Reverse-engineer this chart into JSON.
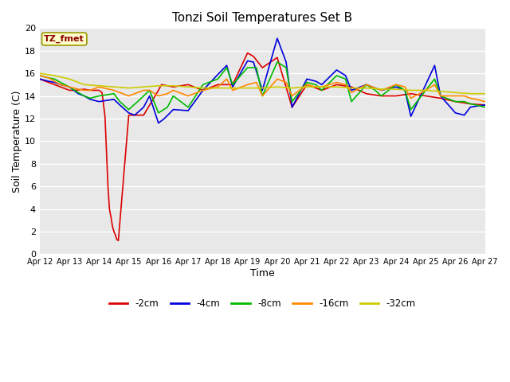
{
  "title": "Tonzi Soil Temperatures Set B",
  "xlabel": "Time",
  "ylabel": "Soil Temperature (C)",
  "ylim": [
    0,
    20
  ],
  "xlim_days": 15,
  "x_tick_labels": [
    "Apr 12",
    "Apr 13",
    "Apr 14",
    "Apr 15",
    "Apr 16",
    "Apr 17",
    "Apr 18",
    "Apr 19",
    "Apr 20",
    "Apr 21",
    "Apr 22",
    "Apr 23",
    "Apr 24",
    "Apr 25",
    "Apr 26",
    "Apr 27"
  ],
  "annotation_label": "TZ_fmet",
  "fig_bg": "#ffffff",
  "plot_bg": "#e8e8e8",
  "grid_color": "#ffffff",
  "series_colors": {
    "neg2cm": "#dd0000",
    "neg4cm": "#0000dd",
    "neg8cm": "#00bb00",
    "neg16cm": "#ff8800",
    "neg32cm": "#cccc00"
  },
  "series_labels": {
    "neg2cm": "-2cm",
    "neg4cm": "-4cm",
    "neg8cm": "-8cm",
    "neg16cm": "-16cm",
    "neg32cm": "-32cm"
  },
  "lw": 1.2,
  "neg2cm_x": [
    0,
    0.3,
    0.5,
    0.7,
    1.0,
    1.2,
    1.5,
    1.7,
    2.0,
    2.1,
    2.2,
    2.3,
    2.35,
    2.4,
    2.45,
    2.5,
    2.55,
    2.6,
    2.65,
    3.0,
    3.5,
    4.0,
    4.1,
    4.5,
    5.0,
    5.5,
    6.0,
    6.5,
    7.0,
    7.2,
    7.5,
    8.0,
    8.5,
    9.0,
    9.5,
    10.0,
    10.5,
    11.0,
    11.5,
    12.0,
    12.5,
    13.0,
    13.5,
    14.0,
    14.5,
    15.0
  ],
  "neg2cm_y": [
    15.5,
    15.2,
    15.0,
    14.8,
    14.5,
    14.5,
    14.6,
    14.5,
    14.5,
    14.3,
    12.2,
    6.0,
    4.0,
    3.3,
    2.5,
    2.0,
    1.7,
    1.3,
    1.2,
    12.3,
    12.3,
    14.5,
    15.0,
    14.8,
    15.0,
    14.5,
    15.0,
    15.0,
    17.8,
    17.5,
    16.5,
    17.4,
    13.0,
    15.0,
    14.5,
    15.0,
    14.8,
    14.2,
    14.0,
    14.0,
    14.2,
    14.0,
    13.8,
    13.5,
    13.3,
    13.2
  ],
  "neg4cm_x": [
    0,
    0.3,
    0.5,
    0.7,
    1.0,
    1.3,
    1.5,
    1.7,
    2.0,
    2.5,
    2.7,
    3.0,
    3.2,
    3.5,
    3.7,
    4.0,
    4.2,
    4.5,
    5.0,
    5.5,
    6.0,
    6.3,
    6.5,
    7.0,
    7.2,
    7.5,
    8.0,
    8.3,
    8.5,
    9.0,
    9.3,
    9.5,
    10.0,
    10.3,
    10.5,
    11.0,
    11.3,
    11.5,
    12.0,
    12.3,
    12.5,
    13.0,
    13.3,
    13.5,
    14.0,
    14.3,
    14.5,
    14.7,
    15.0
  ],
  "neg4cm_y": [
    15.5,
    15.3,
    15.2,
    15.0,
    14.8,
    14.2,
    14.0,
    13.7,
    13.5,
    13.7,
    13.2,
    12.5,
    12.3,
    13.0,
    14.0,
    11.6,
    12.0,
    12.8,
    12.7,
    14.5,
    15.9,
    16.7,
    14.8,
    17.1,
    17.0,
    14.5,
    19.1,
    17.0,
    13.0,
    15.5,
    15.3,
    15.0,
    16.3,
    15.8,
    14.5,
    15.0,
    14.7,
    14.5,
    14.8,
    14.5,
    12.2,
    15.0,
    16.7,
    14.0,
    12.5,
    12.3,
    13.0,
    13.1,
    13.2
  ],
  "neg8cm_x": [
    0,
    0.3,
    0.5,
    0.7,
    1.0,
    1.3,
    1.5,
    1.7,
    2.0,
    2.5,
    2.7,
    3.0,
    3.3,
    3.5,
    3.7,
    4.0,
    4.3,
    4.5,
    5.0,
    5.5,
    6.0,
    6.3,
    6.5,
    7.0,
    7.3,
    7.5,
    8.0,
    8.3,
    8.5,
    9.0,
    9.3,
    9.5,
    10.0,
    10.3,
    10.5,
    11.0,
    11.3,
    11.5,
    12.0,
    12.3,
    12.5,
    13.0,
    13.3,
    13.5,
    14.0,
    14.3,
    14.5,
    14.7,
    15.0
  ],
  "neg8cm_y": [
    15.8,
    15.6,
    15.5,
    15.2,
    14.8,
    14.3,
    14.0,
    13.8,
    14.0,
    14.2,
    13.5,
    12.8,
    13.5,
    14.0,
    14.5,
    12.5,
    13.0,
    14.0,
    13.0,
    15.0,
    15.5,
    16.5,
    15.0,
    16.5,
    16.5,
    14.0,
    17.0,
    16.5,
    13.5,
    15.2,
    15.0,
    14.5,
    15.8,
    15.5,
    13.5,
    15.0,
    14.5,
    14.0,
    15.0,
    14.5,
    12.8,
    14.5,
    15.5,
    14.0,
    13.5,
    13.5,
    13.3,
    13.2,
    13.0
  ],
  "neg16cm_x": [
    0,
    0.3,
    0.5,
    0.7,
    1.0,
    1.3,
    1.5,
    1.7,
    2.0,
    2.5,
    2.7,
    3.0,
    3.3,
    3.5,
    3.7,
    4.0,
    4.3,
    4.5,
    5.0,
    5.5,
    6.0,
    6.3,
    6.5,
    7.0,
    7.3,
    7.5,
    8.0,
    8.3,
    8.5,
    9.0,
    9.3,
    9.5,
    10.0,
    10.3,
    10.5,
    11.0,
    11.3,
    11.5,
    12.0,
    12.3,
    12.5,
    13.0,
    13.3,
    13.5,
    14.0,
    14.3,
    14.5,
    14.7,
    15.0
  ],
  "neg16cm_y": [
    15.8,
    15.6,
    15.3,
    15.0,
    14.8,
    14.6,
    14.5,
    14.5,
    14.8,
    14.5,
    14.3,
    14.0,
    14.3,
    14.5,
    14.5,
    14.0,
    14.2,
    14.5,
    14.0,
    14.5,
    14.8,
    15.5,
    14.5,
    15.0,
    15.2,
    14.0,
    15.5,
    15.2,
    14.0,
    15.0,
    14.8,
    14.8,
    15.2,
    15.0,
    14.3,
    15.0,
    14.7,
    14.5,
    15.0,
    14.8,
    13.8,
    14.5,
    15.0,
    14.0,
    14.0,
    14.0,
    13.8,
    13.7,
    13.5
  ],
  "neg32cm_x": [
    0,
    0.5,
    1.0,
    1.5,
    2.0,
    2.5,
    3.0,
    3.5,
    4.0,
    4.5,
    5.0,
    5.5,
    6.0,
    6.5,
    7.0,
    7.5,
    8.0,
    8.5,
    9.0,
    9.5,
    10.0,
    10.5,
    11.0,
    11.5,
    12.0,
    12.5,
    13.0,
    13.5,
    14.0,
    14.5,
    15.0
  ],
  "neg32cm_y": [
    16.0,
    15.8,
    15.5,
    15.0,
    14.9,
    14.8,
    14.7,
    14.8,
    14.9,
    14.9,
    14.8,
    14.7,
    14.7,
    14.7,
    14.7,
    14.7,
    14.8,
    14.7,
    14.8,
    14.8,
    14.8,
    14.7,
    14.7,
    14.6,
    14.6,
    14.5,
    14.5,
    14.4,
    14.3,
    14.2,
    14.2
  ]
}
